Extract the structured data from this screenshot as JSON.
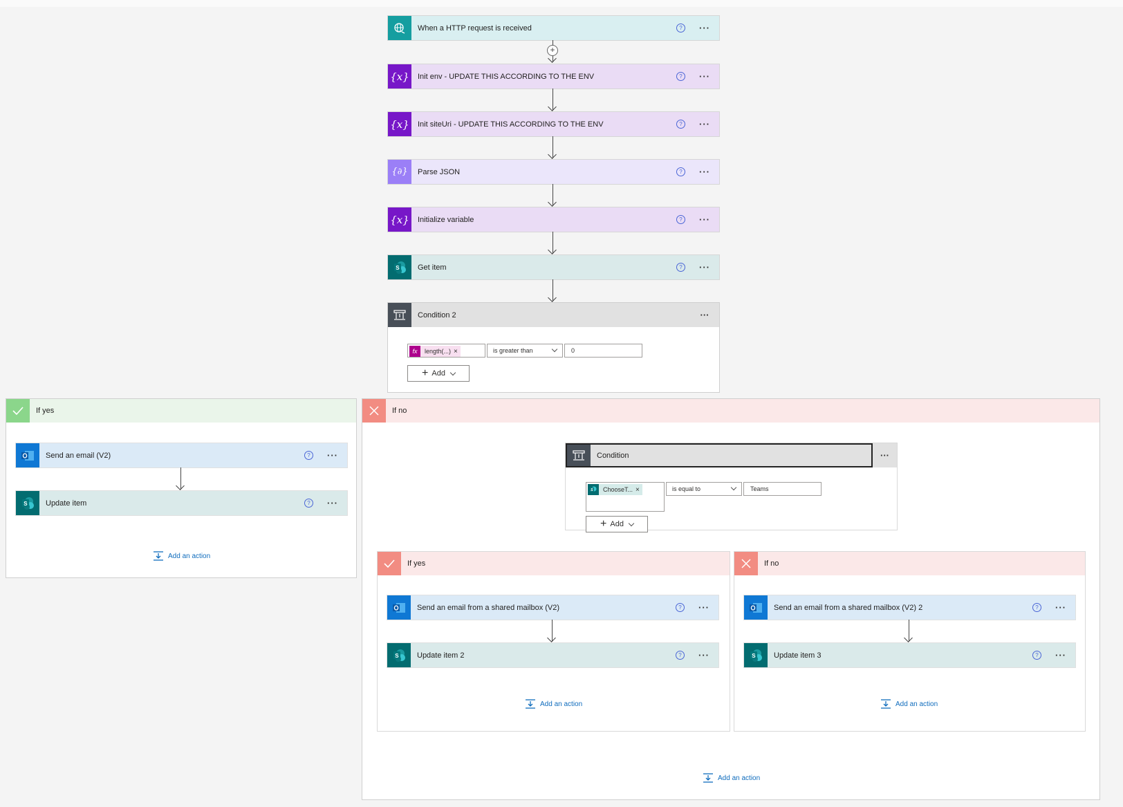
{
  "steps": {
    "http_trigger": "When a HTTP request is received",
    "init_env": "Init env - UPDATE THIS ACCORDING TO THE ENV",
    "init_siteuri": "Init siteUri - UPDATE THIS ACCORDING TO THE ENV",
    "parse_json": "Parse JSON",
    "init_variable": "Initialize variable",
    "get_item": "Get item"
  },
  "condition2": {
    "title": "Condition 2",
    "token": "length(...)",
    "operator": "is greater than",
    "value": "0",
    "add_label": "Add"
  },
  "outer_yes": {
    "title": "If yes",
    "send_email": "Send an email (V2)",
    "update_item": "Update item",
    "add_action": "Add an action"
  },
  "outer_no": {
    "title": "If no",
    "add_action": "Add an action"
  },
  "condition": {
    "title": "Condition",
    "token": "ChooseT...",
    "operator": "is equal to",
    "value": "Teams",
    "add_label": "Add"
  },
  "inner_yes": {
    "title": "If yes",
    "send_email": "Send an email from a shared mailbox (V2)",
    "update_item": "Update item 2",
    "add_action": "Add an action"
  },
  "inner_no": {
    "title": "If no",
    "send_email": "Send an email from a shared mailbox (V2) 2",
    "update_item": "Update item 3",
    "add_action": "Add an action"
  },
  "common": {
    "help_glyph": "?",
    "more_glyph": "···",
    "token_close": "×"
  },
  "icons": {
    "http": "globe-icon",
    "variable": "variable-icon",
    "parse": "parse-json-icon",
    "sharepoint": "sharepoint-icon",
    "outlook": "outlook-icon",
    "condition": "condition-icon"
  },
  "colors": {
    "http": "#159ea0",
    "variable": "#7717c8",
    "parse": "#9b7ff7",
    "sharepoint": "#036c70",
    "outlook": "#0f78d4",
    "condition": "#484f58",
    "yes": "#8bd68b",
    "no": "#f28c82",
    "link": "#0f6cbd"
  }
}
